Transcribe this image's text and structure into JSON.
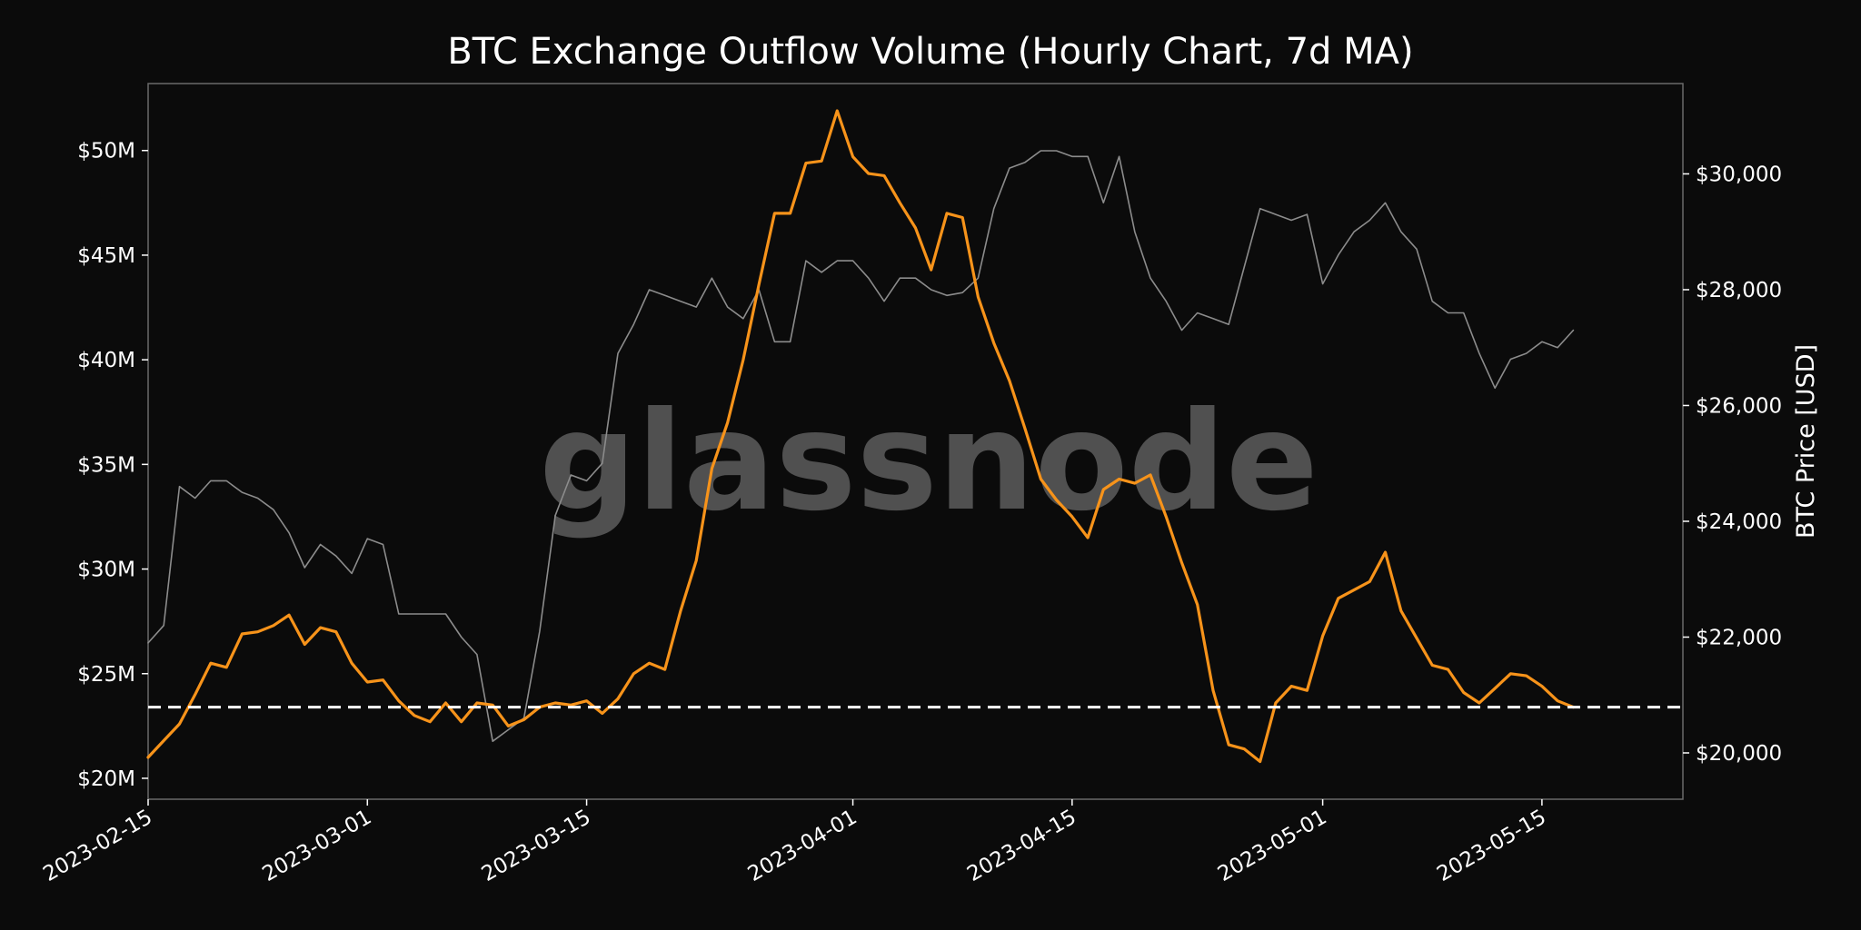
{
  "chart_data": {
    "type": "line",
    "title": "BTC Exchange Outflow Volume (Hourly Chart, 7d MA)",
    "watermark": "glassnode",
    "xlabel": "",
    "ylabel_left": "",
    "ylabel_right": "BTC Price [USD]",
    "x_range": [
      "2023-02-15",
      "2023-05-24"
    ],
    "x_ticks": [
      "2023-02-15",
      "2023-03-01",
      "2023-03-15",
      "2023-04-01",
      "2023-04-15",
      "2023-05-01",
      "2023-05-15"
    ],
    "y_left_range": [
      19000000,
      53200000
    ],
    "y_left_ticks": [
      20000000,
      25000000,
      30000000,
      35000000,
      40000000,
      45000000,
      50000000
    ],
    "y_left_tick_labels": [
      "$20M",
      "$25M",
      "$30M",
      "$35M",
      "$40M",
      "$45M",
      "$50M"
    ],
    "y_right_range": [
      19200000,
      31560000
    ],
    "y_right_range_note": "",
    "y_right_ticks": [
      20000,
      22000,
      24000,
      26000,
      28000,
      30000
    ],
    "y_right_tick_labels": [
      "$20,000",
      "$22,000",
      "$24,000",
      "$26,000",
      "$28,000",
      "$30,000"
    ],
    "grid": false,
    "legend": "none",
    "reference_line": {
      "value": 23400000,
      "style": "dashed",
      "color": "#ffffff"
    },
    "series": [
      {
        "axis": "left",
        "color": "#f7931a",
        "x": [
          "2023-02-15",
          "2023-02-16",
          "2023-02-17",
          "2023-02-18",
          "2023-02-19",
          "2023-02-20",
          "2023-02-21",
          "2023-02-22",
          "2023-02-23",
          "2023-02-24",
          "2023-02-25",
          "2023-02-26",
          "2023-02-27",
          "2023-02-28",
          "2023-03-01",
          "2023-03-02",
          "2023-03-03",
          "2023-03-04",
          "2023-03-05",
          "2023-03-06",
          "2023-03-07",
          "2023-03-08",
          "2023-03-09",
          "2023-03-10",
          "2023-03-11",
          "2023-03-12",
          "2023-03-13",
          "2023-03-14",
          "2023-03-15",
          "2023-03-16",
          "2023-03-17",
          "2023-03-18",
          "2023-03-19",
          "2023-03-20",
          "2023-03-21",
          "2023-03-22",
          "2023-03-23",
          "2023-03-24",
          "2023-03-25",
          "2023-03-26",
          "2023-03-27",
          "2023-03-28",
          "2023-03-29",
          "2023-03-30",
          "2023-03-31",
          "2023-04-01",
          "2023-04-02",
          "2023-04-03",
          "2023-04-04",
          "2023-04-05",
          "2023-04-06",
          "2023-04-07",
          "2023-04-08",
          "2023-04-09",
          "2023-04-10",
          "2023-04-11",
          "2023-04-12",
          "2023-04-13",
          "2023-04-14",
          "2023-04-15",
          "2023-04-16",
          "2023-04-17",
          "2023-04-18",
          "2023-04-19",
          "2023-04-20",
          "2023-04-21",
          "2023-04-22",
          "2023-04-23",
          "2023-04-24",
          "2023-04-25",
          "2023-04-26",
          "2023-04-27",
          "2023-04-28",
          "2023-04-29",
          "2023-04-30",
          "2023-05-01",
          "2023-05-02",
          "2023-05-03",
          "2023-05-04",
          "2023-05-05",
          "2023-05-06",
          "2023-05-07",
          "2023-05-08",
          "2023-05-09",
          "2023-05-10",
          "2023-05-11",
          "2023-05-12",
          "2023-05-13",
          "2023-05-14",
          "2023-05-15",
          "2023-05-16",
          "2023-05-17"
        ],
        "y": [
          21000000,
          21800000,
          22600000,
          24000000,
          25500000,
          25300000,
          26900000,
          27000000,
          27300000,
          27800000,
          26400000,
          27200000,
          27000000,
          25500000,
          24600000,
          24700000,
          23700000,
          23000000,
          22700000,
          23600000,
          22700000,
          23600000,
          23500000,
          22500000,
          22800000,
          23400000,
          23600000,
          23500000,
          23700000,
          23100000,
          23800000,
          25000000,
          25500000,
          25200000,
          28000000,
          30400000,
          34800000,
          37000000,
          40000000,
          43600000,
          47000000,
          47000000,
          49400000,
          49500000,
          51900000,
          49700000,
          48900000,
          48800000,
          47500000,
          46300000,
          44300000,
          47000000,
          46800000,
          43000000,
          40800000,
          39000000,
          36700000,
          34300000,
          33300000,
          32500000,
          31500000,
          33800000,
          34300000,
          34100000,
          34500000,
          32500000,
          30300000,
          28300000,
          24200000,
          21600000,
          21400000,
          20800000,
          23600000,
          24400000,
          24200000,
          26800000,
          28600000,
          29000000,
          29400000,
          30800000,
          28000000,
          26700000,
          25400000,
          25200000,
          24100000,
          23600000,
          24300000,
          25000000,
          24900000,
          24400000,
          23700000,
          23400000
        ],
        "x_note": ""
      },
      {
        "axis": "right",
        "color": "#8c8c8c",
        "x": [
          "2023-02-15",
          "2023-02-16",
          "2023-02-17",
          "2023-02-18",
          "2023-02-19",
          "2023-02-20",
          "2023-02-21",
          "2023-02-22",
          "2023-02-23",
          "2023-02-24",
          "2023-02-25",
          "2023-02-26",
          "2023-02-27",
          "2023-02-28",
          "2023-03-01",
          "2023-03-02",
          "2023-03-03",
          "2023-03-04",
          "2023-03-05",
          "2023-03-06",
          "2023-03-07",
          "2023-03-08",
          "2023-03-09",
          "2023-03-10",
          "2023-03-11",
          "2023-03-12",
          "2023-03-13",
          "2023-03-14",
          "2023-03-15",
          "2023-03-16",
          "2023-03-17",
          "2023-03-18",
          "2023-03-19",
          "2023-03-20",
          "2023-03-21",
          "2023-03-22",
          "2023-03-23",
          "2023-03-24",
          "2023-03-25",
          "2023-03-26",
          "2023-03-27",
          "2023-03-28",
          "2023-03-29",
          "2023-03-30",
          "2023-03-31",
          "2023-04-01",
          "2023-04-02",
          "2023-04-03",
          "2023-04-04",
          "2023-04-05",
          "2023-04-06",
          "2023-04-07",
          "2023-04-08",
          "2023-04-09",
          "2023-04-10",
          "2023-04-11",
          "2023-04-12",
          "2023-04-13",
          "2023-04-14",
          "2023-04-15",
          "2023-04-16",
          "2023-04-17",
          "2023-04-18",
          "2023-04-19",
          "2023-04-20",
          "2023-04-21",
          "2023-04-22",
          "2023-04-23",
          "2023-04-24",
          "2023-04-25",
          "2023-04-26",
          "2023-04-27",
          "2023-04-28",
          "2023-04-29",
          "2023-04-30",
          "2023-05-01",
          "2023-05-02",
          "2023-05-03",
          "2023-05-04",
          "2023-05-05",
          "2023-05-06",
          "2023-05-07",
          "2023-05-08",
          "2023-05-09",
          "2023-05-10",
          "2023-05-11",
          "2023-05-12",
          "2023-05-13",
          "2023-05-14",
          "2023-05-15",
          "2023-05-16",
          "2023-05-17"
        ],
        "y": [
          21900000,
          22200000,
          24600000,
          24400000,
          24700000,
          24700000,
          24500000,
          24400000,
          24200000,
          23800000,
          23200000,
          23600000,
          23400000,
          23100000,
          23700000,
          23600000,
          22400000,
          22400000,
          22400000,
          22400000,
          22000000,
          21700000,
          20200000,
          20400000,
          20600000,
          22100000,
          24100000,
          24800000,
          24700000,
          25000000,
          26900000,
          27400000,
          28000000,
          27900000,
          27800000,
          27700000,
          28200000,
          27700000,
          27500000,
          28000000,
          27100000,
          27100000,
          28500000,
          28300000,
          28500000,
          28500000,
          28200000,
          27800000,
          28200000,
          28200000,
          28000000,
          27900000,
          27950000,
          28200000,
          29400000,
          30100000,
          30200000,
          30400000,
          30400000,
          30300000,
          30300000,
          29500000,
          30300000,
          29000000,
          28200000,
          27800000,
          27300000,
          27600000,
          27500000,
          27400000,
          28400000,
          29400000,
          29300000,
          29200000,
          29300000,
          28100000,
          28600000,
          29000000,
          29200000,
          29500000,
          29000000,
          28700000,
          27800000,
          27600000,
          27600000,
          26900000,
          26300000,
          26800000,
          26900000,
          27100000,
          27000000,
          27300000
        ],
        "x_note": ""
      }
    ]
  }
}
